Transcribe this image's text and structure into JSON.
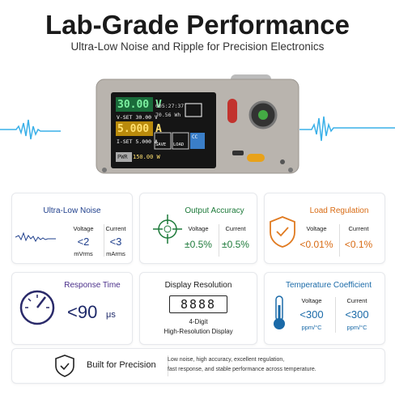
{
  "header": {
    "title": "Lab-Grade Performance",
    "subtitle": "Ultra-Low Noise and Ripple for Precision Electronics"
  },
  "device_screen": {
    "voltage": "30.00 V",
    "voltage_set": "V-SET 30.00 V",
    "time": "005:27:37",
    "energy": "70.56 Wh",
    "current": "5.000 A",
    "current_set": "I-SET 5.000 A",
    "save": "SAVE",
    "load": "LOAD",
    "mode": "CC",
    "power_label": "PWR",
    "power": "150.00 W"
  },
  "cards": [
    {
      "title": "Ultra-Low Noise",
      "items": [
        {
          "label": "Voltage",
          "value": "<2",
          "unit": "mVrms"
        },
        {
          "label": "Current",
          "value": "<3",
          "unit": "mArms"
        }
      ]
    },
    {
      "title": "Output Accuracy",
      "items": [
        {
          "label": "Voltage",
          "value": "±0.5%"
        },
        {
          "label": "Current",
          "value": "±0.5%"
        }
      ]
    },
    {
      "title": "Load Regulation",
      "items": [
        {
          "label": "Voltage",
          "value": "<0.01%"
        },
        {
          "label": "Current",
          "value": "<0.1%"
        }
      ]
    },
    {
      "title": "Response Time",
      "value": "<90",
      "unit": "μs"
    },
    {
      "title": "Display Resolution",
      "digits": "8888",
      "line1": "4-Digit",
      "line2": "High-Resolution Display"
    },
    {
      "title": "Temperature Coefficient",
      "items": [
        {
          "label": "Voltage",
          "value": "<300",
          "unit": "ppm/°C"
        },
        {
          "label": "Current",
          "value": "<300",
          "unit": "ppm/°C"
        }
      ]
    }
  ],
  "footer": {
    "title": "Built for Precision",
    "lines": [
      "Low noise, high accuracy, excellent regulation,",
      "fast response, and stable performance across temperature."
    ]
  }
}
